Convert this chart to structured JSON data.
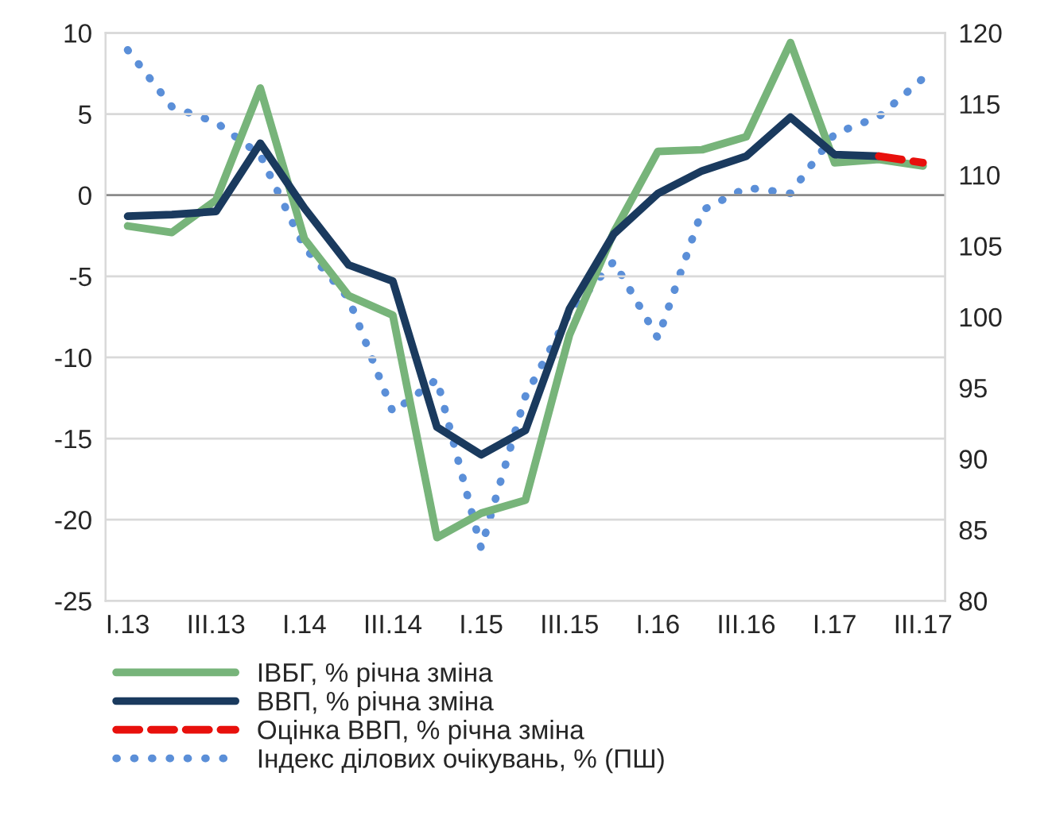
{
  "chart_data": {
    "type": "line",
    "categories": [
      "I.13",
      null,
      "III.13",
      null,
      "I.14",
      null,
      "III.14",
      null,
      "I.15",
      null,
      "III.15",
      null,
      "I.16",
      null,
      "III.16",
      null,
      "I.17",
      null,
      "III.17"
    ],
    "series": [
      {
        "name": "ІВБГ, % річна зміна",
        "color": "#77b47a",
        "line_style": "solid",
        "values": [
          -1.9,
          -2.3,
          -0.3,
          6.6,
          -2.7,
          -6.2,
          -7.4,
          -21.1,
          -19.6,
          -18.8,
          -8.6,
          -2.3,
          2.7,
          2.8,
          3.6,
          9.4,
          2.0,
          2.2,
          1.8
        ]
      },
      {
        "name": "ВВП, % річна зміна",
        "color": "#1a3a5e",
        "line_style": "solid",
        "values": [
          -1.3,
          -1.2,
          -1.0,
          3.2,
          -0.8,
          -4.3,
          -5.3,
          -14.3,
          -16.0,
          -14.5,
          -7.0,
          -2.4,
          0.1,
          1.5,
          2.4,
          4.8,
          2.5,
          2.4,
          null
        ]
      },
      {
        "name": "Оцінка ВВП, % річна зміна",
        "color": "#e8100c",
        "line_style": "dashed",
        "values": [
          null,
          null,
          null,
          null,
          null,
          null,
          null,
          null,
          null,
          null,
          null,
          null,
          null,
          null,
          null,
          null,
          null,
          2.4,
          2.0
        ]
      },
      {
        "name": "Індекс ділових очікувань, % (ПШ)",
        "color": "#5b8fd8",
        "line_style": "dotted",
        "axis": "y2",
        "values": [
          118.8,
          114.8,
          113.7,
          111.4,
          104.9,
          101.3,
          93.3,
          95.6,
          83.7,
          94.4,
          100.3,
          103.9,
          98.5,
          107.5,
          109.1,
          108.7,
          112.9,
          114.1,
          116.8
        ]
      }
    ],
    "ylim": [
      -25,
      10
    ],
    "yticks": [
      -25,
      -20,
      -15,
      -10,
      -5,
      0,
      5,
      10
    ],
    "y2lim": [
      80,
      120
    ],
    "y2ticks": [
      80,
      85,
      90,
      95,
      100,
      105,
      110,
      115,
      120
    ],
    "grid": true,
    "legend": "bottom"
  }
}
